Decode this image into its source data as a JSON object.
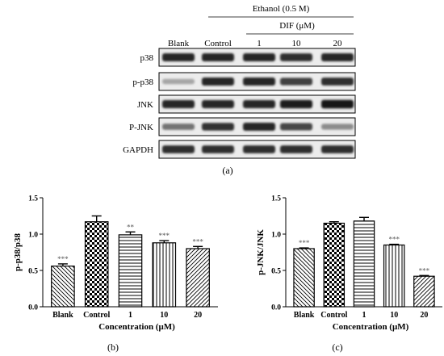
{
  "figure": {
    "blot": {
      "header_treatment": "Ethanol  (0.5 M)",
      "header_dif": "DIF (μM)",
      "lanes": [
        "Blank",
        "Control",
        "1",
        "10",
        "20"
      ],
      "rows": [
        "p38",
        "p-p38",
        "JNK",
        "P-JNK",
        "GAPDH"
      ],
      "band_intensity": {
        "p38": [
          0.85,
          0.85,
          0.85,
          0.82,
          0.85
        ],
        "p-p38": [
          0.35,
          0.85,
          0.85,
          0.75,
          0.82
        ],
        "JNK": [
          0.85,
          0.85,
          0.85,
          0.88,
          0.92
        ],
        "P-JNK": [
          0.55,
          0.8,
          0.85,
          0.72,
          0.45
        ],
        "GAPDH": [
          0.82,
          0.82,
          0.82,
          0.82,
          0.82
        ]
      }
    },
    "labels": {
      "a": "(a)",
      "b": "(b)",
      "c": "(c)"
    }
  },
  "chart_data": [
    {
      "type": "bar",
      "panel": "(b)",
      "categories": [
        "Blank",
        "Control",
        "1",
        "10",
        "20"
      ],
      "values": [
        0.56,
        1.17,
        0.99,
        0.88,
        0.8
      ],
      "errors": [
        0.03,
        0.08,
        0.04,
        0.03,
        0.03
      ],
      "significance": [
        "***",
        "",
        "**",
        "***",
        "***"
      ],
      "patterns": [
        "diag-down",
        "checker",
        "horizontal",
        "vertical",
        "diag-up"
      ],
      "xlabel": "Concentration (μM)",
      "ylabel": "p-p38/p38",
      "ylim": [
        0.0,
        1.5
      ],
      "yticks": [
        "0.0",
        "0.5",
        "1.0",
        "1.5"
      ],
      "grid": false
    },
    {
      "type": "bar",
      "panel": "(c)",
      "categories": [
        "Blank",
        "Control",
        "1",
        "10",
        "20"
      ],
      "values": [
        0.8,
        1.15,
        1.18,
        0.85,
        0.42
      ],
      "errors": [
        0.01,
        0.02,
        0.05,
        0.01,
        0.01
      ],
      "significance": [
        "***",
        "",
        "",
        "***",
        "***"
      ],
      "patterns": [
        "diag-down",
        "checker",
        "horizontal",
        "vertical",
        "diag-up"
      ],
      "xlabel": "Concentration (μM)",
      "ylabel": "p-JNK/JNK",
      "ylim": [
        0.0,
        1.5
      ],
      "yticks": [
        "0.0",
        "0.5",
        "1.0",
        "1.5"
      ],
      "grid": false
    }
  ]
}
